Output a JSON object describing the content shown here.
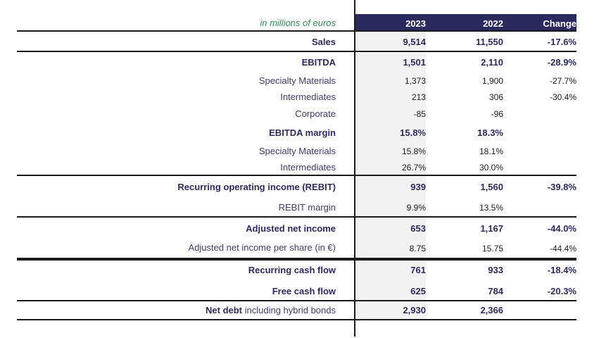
{
  "unit_note": "in millions of euros",
  "headers": {
    "y2023": "2023",
    "y2022": "2022",
    "change": "Change"
  },
  "rows": {
    "sales": {
      "label": "Sales",
      "v2023": "9,514",
      "v2022": "11,550",
      "change": "-17.6%"
    },
    "ebitda": {
      "label": "EBITDA",
      "v2023": "1,501",
      "v2022": "2,110",
      "change": "-28.9%"
    },
    "ebitda_specialty": {
      "label": "Specialty Materials",
      "v2023": "1,373",
      "v2022": "1,900",
      "change": "-27.7%"
    },
    "ebitda_intermediates": {
      "label": "Intermediates",
      "v2023": "213",
      "v2022": "306",
      "change": "-30.4%"
    },
    "ebitda_corporate": {
      "label": "Corporate",
      "v2023": "-85",
      "v2022": "-96",
      "change": ""
    },
    "ebitda_margin": {
      "label": "EBITDA margin",
      "v2023": "15.8%",
      "v2022": "18.3%",
      "change": ""
    },
    "margin_specialty": {
      "label": "Specialty Materials",
      "v2023": "15.8%",
      "v2022": "18.1%",
      "change": ""
    },
    "margin_intermediates": {
      "label": "Intermediates",
      "v2023": "26.7%",
      "v2022": "30.0%",
      "change": ""
    },
    "rebit": {
      "label": "Recurring operating income (REBIT)",
      "v2023": "939",
      "v2022": "1,560",
      "change": "-39.8%"
    },
    "rebit_margin": {
      "label": "REBIT margin",
      "v2023": "9.9%",
      "v2022": "13.5%",
      "change": ""
    },
    "adj_net_income": {
      "label": "Adjusted net income",
      "v2023": "653",
      "v2022": "1,167",
      "change": "-44.0%"
    },
    "adj_eps": {
      "label": "Adjusted net income per share (in €)",
      "v2023": "8.75",
      "v2022": "15.75",
      "change": "-44.4%"
    },
    "recurring_cash_flow": {
      "label": "Recurring cash flow",
      "v2023": "761",
      "v2022": "933",
      "change": "-18.4%"
    },
    "free_cash_flow": {
      "label": "Free cash flow",
      "v2023": "625",
      "v2022": "784",
      "change": "-20.3%"
    },
    "net_debt": {
      "label": "Net debt",
      "label_suffix": " including hybrid bonds",
      "v2023": "2,930",
      "v2022": "2,366",
      "change": ""
    }
  }
}
